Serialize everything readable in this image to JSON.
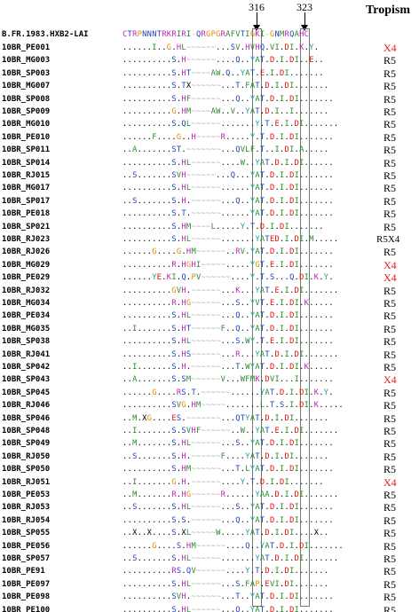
{
  "header": {
    "marker_left": "316",
    "marker_right": "323",
    "tropism": "Tropism"
  },
  "colors": {
    "x4": "#e8141b",
    "r5": "#000000"
  },
  "reference": {
    "name": "B.FR.1983.HXB2-LAI",
    "sequence": "CTRPNNNTRKRIRI-QRGPGRAFVTIGKI-GNMRQAHC"
  },
  "sequences": [
    {
      "name": "10BR_PE001",
      "seq": "......I..G.HL~~~~~~...SV.HVHQ.VI.DI.K.Y.",
      "tropism": "X4"
    },
    {
      "name": "10BR_MG003",
      "seq": "..........S.H~~~~~~....Q..YAT.D.I.DI..E..",
      "tropism": "R5"
    },
    {
      "name": "10BR_SP003",
      "seq": "..........S.HT~~~~AW.Q..YAT.E.I.DI.......",
      "tropism": "R5"
    },
    {
      "name": "10BR_MG007",
      "seq": "..........S.TX~~~~~~...T.FAT.D.I.DI.......",
      "tropism": "R5"
    },
    {
      "name": "10BR_SP008",
      "seq": "..........S.HF~~~~~~...Q..YAT.D.I.DI.......",
      "tropism": "R5"
    },
    {
      "name": "10BR_SP009",
      "seq": "..........G.HM~~~~AW..V..YAT.D.I..I.......",
      "tropism": "R5"
    },
    {
      "name": "10BR_MG010",
      "seq": "..........S.QL~~~~~~.......Y.T.E.I.DI.......",
      "tropism": "R5"
    },
    {
      "name": "10BR_PE010",
      "seq": "......F....G..H~~~~~R.....Y.T.D.I.DI.......",
      "tropism": "R5"
    },
    {
      "name": "10BR_SP011",
      "seq": "..A.......ST.~~~~~~~...QVLF.T..I.DI.A.....",
      "tropism": "R5"
    },
    {
      "name": "10BR_SP014",
      "seq": "..........S.HL~~~~~~....W..YAT.D.I.DI......",
      "tropism": "R5"
    },
    {
      "name": "10BR_RJ015",
      "seq": "..S.......SVH~~~~~~...Q...YAT.D.I.DI.......",
      "tropism": "R5"
    },
    {
      "name": "10BR_MG017",
      "seq": "..........S.HL~~~~~~......YAT.D.I.DI.......",
      "tropism": "R5"
    },
    {
      "name": "10BR_SP017",
      "seq": "..S.......S.H.~~~~~~...Q..YAT.D.I.DI.......",
      "tropism": "R5"
    },
    {
      "name": "10BR_PE018",
      "seq": "..........S.T.~~~~~~......YAT.D.I.DI.......",
      "tropism": "R5"
    },
    {
      "name": "10BR_SP021",
      "seq": "..........S.HM~~~~L.....Y.T.D.I.DI.......",
      "tropism": "R5"
    },
    {
      "name": "10BR_RJ023",
      "seq": "..........S.HL~~~~~~.......YATED.I.DI.M.....",
      "tropism": "R5X4"
    },
    {
      "name": "10BR_RJ026",
      "seq": "......G....G.HM~~~~~~..RV.YAT.D.I.DI.......",
      "tropism": "R5"
    },
    {
      "name": "10BR_MG029",
      "seq": "..........R.HGHI~~~~~.....YGT.E.I.DI.......",
      "tropism": "X4"
    },
    {
      "name": "10BR_PE029",
      "seq": "......YE.KI.Q.PV~~~~~~....Y.T.S...Q.DI.K.Y.",
      "tropism": "X4"
    },
    {
      "name": "10BR_RJ032",
      "seq": "..........GVH.~~~~~~...K...YAT.E.I.DI.......",
      "tropism": "R5"
    },
    {
      "name": "10BR_MG034",
      "seq": "..........R.HG~~~~~~...S..YVT.E.I.DI.K.....",
      "tropism": "R5"
    },
    {
      "name": "10BR_PE034",
      "seq": "..........S.HL~~~~~~...Q..YAT.D.I.DI.......",
      "tropism": "R5"
    },
    {
      "name": "10BR_MG035",
      "seq": "..I.......S.HT~~~~~~F..Q..YAT.D.I.DI.......",
      "tropism": "R5"
    },
    {
      "name": "10BR_SP038",
      "seq": "..........S.HL~~~~~~...S.WY.T.E.I.DI.......",
      "tropism": "R5"
    },
    {
      "name": "10BR_RJ041",
      "seq": "..........S.HS~~~~~~...R...YAT.D.I.DI.......",
      "tropism": "R5"
    },
    {
      "name": "10BR_SP042",
      "seq": "..I.......S.H.~~~~~~...T.WYAT.D.I.DI.K.....",
      "tropism": "R5"
    },
    {
      "name": "10BR_SP043",
      "seq": "..A.......S.SM~~~~~~V...WFMK.DVI...I.......",
      "tropism": "X4"
    },
    {
      "name": "10BR_SP045",
      "seq": "......G....RS.T.~~~~~~......YAT.D.I.DI.K.Y.",
      "tropism": "R5"
    },
    {
      "name": "10BR_RJ046",
      "seq": "..........SVG.HM~~~~~.......L.T.S.I.DI.K.....",
      "tropism": "R5"
    },
    {
      "name": "10BR_SP046",
      "seq": "..M.XG....ES.~~~~~~~...QTYAT.D.I.DI.......",
      "tropism": "R5"
    },
    {
      "name": "10BR_SP048",
      "seq": "..I.......S.SVHF~~~~~~..W..YAT.E.I.DI.......",
      "tropism": "R5"
    },
    {
      "name": "10BR_SP049",
      "seq": "..M.......S.HL~~~~~~...S..YAT.D.I.DI.......",
      "tropism": "R5"
    },
    {
      "name": "10BR_RJ050",
      "seq": "..S.......S.H.~~~~~~F....YAT.D.I.DI.......",
      "tropism": "R5"
    },
    {
      "name": "10BR_SP050",
      "seq": "..........S.HM~~~~~~...T.LYAT.D.I.DI.......",
      "tropism": "R5"
    },
    {
      "name": "10BR_RJ051",
      "seq": "..I.......G.H.~~~~~~....Y.T.D.I.DI.......",
      "tropism": "X4"
    },
    {
      "name": "10BR_PE053",
      "seq": "..M.......R.HG~~~~~~R......YAA.D.I.DI.......",
      "tropism": "R5"
    },
    {
      "name": "10BR_RJ053",
      "seq": "..S.......S.HL~~~~~~...S..YAT.D.I.DI.......",
      "tropism": "R5"
    },
    {
      "name": "10BR_RJ054",
      "seq": "..........S.S.~~~~~~...Q..YAT.D.I.DI.......",
      "tropism": "R5"
    },
    {
      "name": "10BR_SP055",
      "seq": "..X..X....S.XL~~~~~W.....YAT.D.I.DI....X..",
      "tropism": "R5"
    },
    {
      "name": "10BR_PE056",
      "seq": "......G....S.HM~~~~~~....Q..YAT.D.I.DI.......",
      "tropism": "R5"
    },
    {
      "name": "10BR_SP057",
      "seq": "..S.......S.HL~~~~~~.......YAT.D.I.DI.......",
      "tropism": "R5"
    },
    {
      "name": "10BR_PE91",
      "seq": "..........RS.QV~~~~~~....Y.T.D.I.DI.......",
      "tropism": "R5"
    },
    {
      "name": "10BR_PE097",
      "seq": "..........S.HL~~~~~~...S.FAP.EVI.DI.......",
      "tropism": "R5"
    },
    {
      "name": "10BR_PE098",
      "seq": "..........SVH.~~~~~~...T..YAT.D.I.DI.......",
      "tropism": "R5"
    },
    {
      "name": "10BR_PE100",
      "seq": "..........S.HL~~~~~~...Q..YAT.D.I.DI.......",
      "tropism": "R5"
    }
  ]
}
